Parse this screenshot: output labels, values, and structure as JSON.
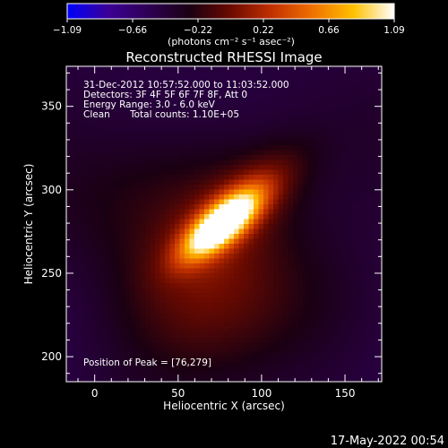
{
  "chart_data": {
    "type": "heatmap",
    "title": "Reconstructed RHESSI Image",
    "xlabel": "Heliocentric X (arcsec)",
    "ylabel": "Heliocentric Y (arcsec)",
    "xlim": [
      -17,
      172
    ],
    "ylim": [
      185,
      374
    ],
    "x_ticks": [
      0,
      50,
      100,
      150
    ],
    "y_ticks": [
      200,
      250,
      300,
      350
    ],
    "colorbar": {
      "label": "(photons cm⁻² s⁻¹ asec⁻²)",
      "range": [
        -1.09,
        1.09
      ],
      "ticks": [
        "−1.09",
        "−0.66",
        "−0.22",
        "0.22",
        "0.66",
        "1.09"
      ],
      "colormap": [
        "#0000ff",
        "#3b0096",
        "#2d0052",
        "#1a0012",
        "#6a0a00",
        "#c23000",
        "#f07000",
        "#ffc000",
        "#ffffff"
      ]
    },
    "annotations": [
      "31-Dec-2012 10:57:52.000 to 11:03:52.000",
      "Detectors: 3F 4F 5F 6F 7F 8F, Att 0",
      "Energy Range: 3.0 - 6.0 keV",
      "Clean",
      "Total counts: 1.10E+05",
      "Position of Peak = [76,279]"
    ],
    "peak": {
      "x": 76,
      "y": 279,
      "value": 1.09
    },
    "sources": [
      {
        "x": 76,
        "y": 279,
        "amp": 1.0,
        "sx": 18,
        "sy": 7,
        "angle_deg": 40
      },
      {
        "x": 86,
        "y": 290,
        "amp": 0.35,
        "sx": 30,
        "sy": 12,
        "angle_deg": 40
      },
      {
        "x": 70,
        "y": 260,
        "amp": 0.22,
        "sx": 45,
        "sy": 30,
        "angle_deg": 60
      },
      {
        "x": 30,
        "y": 300,
        "amp": 0.12,
        "sx": 45,
        "sy": 30,
        "angle_deg": 20
      },
      {
        "x": 120,
        "y": 230,
        "amp": 0.1,
        "sx": 50,
        "sy": 30,
        "angle_deg": 0
      }
    ],
    "background_level": -0.45
  },
  "footer": {
    "timestamp": "17-May-2022 00:54"
  }
}
